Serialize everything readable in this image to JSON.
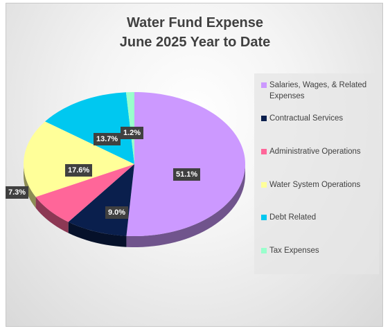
{
  "chart_data": {
    "type": "pie",
    "title_lines": [
      "Water Fund Expense",
      "June 2025 Year to Date"
    ],
    "legend_position": "right",
    "slices": [
      {
        "label": "Salaries, Wages, & Related Expenses",
        "value": 51.1,
        "value_label": "51.1%",
        "color": "#cc99ff"
      },
      {
        "label": "Contractual Services",
        "value": 9.0,
        "value_label": "9.0%",
        "color": "#0a1f4d"
      },
      {
        "label": "Administrative Operations",
        "value": 7.3,
        "value_label": "7.3%",
        "color": "#ff6699"
      },
      {
        "label": "Water System Operations",
        "value": 17.6,
        "value_label": "17.6%",
        "color": "#ffff99"
      },
      {
        "label": "Debt Related",
        "value": 13.7,
        "value_label": "13.7%",
        "color": "#00c8f0"
      },
      {
        "label": "Tax Expenses",
        "value": 1.2,
        "value_label": "1.2%",
        "color": "#99ffcc"
      }
    ]
  }
}
